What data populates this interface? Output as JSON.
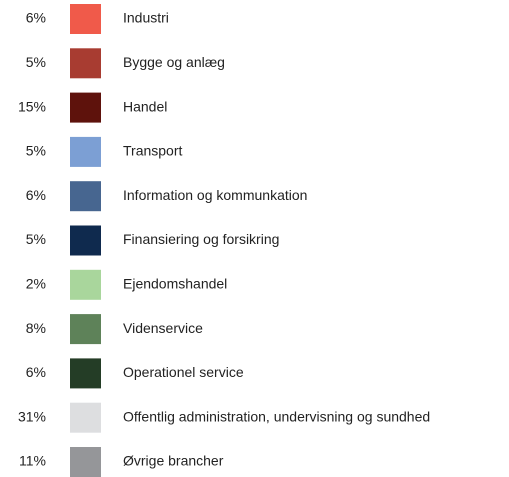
{
  "chart_data": {
    "type": "legend",
    "categories": [
      "Industri",
      "Bygge og anlæg",
      "Handel",
      "Transport",
      "Information og kommunkation",
      "Finansiering og forsikring",
      "Ejendomshandel",
      "Videnservice",
      "Operationel service",
      "Offentlig administration, undervisning og sundhed",
      "Øvrige brancher"
    ],
    "values": [
      6,
      5,
      15,
      5,
      6,
      5,
      2,
      8,
      6,
      31,
      11
    ],
    "value_labels": [
      "6%",
      "5%",
      "15%",
      "5%",
      "6%",
      "5%",
      "2%",
      "8%",
      "6%",
      "31%",
      "11%"
    ],
    "colors": [
      "#f05a4a",
      "#a83c31",
      "#5e120c",
      "#7c9fd4",
      "#476690",
      "#0f2a4e",
      "#a9d69c",
      "#5e8259",
      "#243d26",
      "#dddee0",
      "#959699"
    ]
  }
}
